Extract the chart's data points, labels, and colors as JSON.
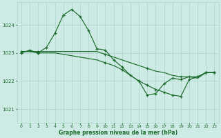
{
  "title": "Graphe pression niveau de la mer (hPa)",
  "background_color": "#ceeae4",
  "line_color": "#1a6b2a",
  "grid_color": "#aad4cc",
  "x_ticks": [
    0,
    1,
    2,
    3,
    4,
    5,
    6,
    7,
    8,
    9,
    10,
    11,
    12,
    13,
    14,
    15,
    16,
    17,
    18,
    19,
    20,
    21,
    22,
    23
  ],
  "ylim": [
    1020.5,
    1024.8
  ],
  "yticks": [
    1021,
    1022,
    1023,
    1024
  ],
  "line1": [
    1023.0,
    1023.1,
    1023.0,
    1023.2,
    1023.7,
    1024.35,
    1024.55,
    1024.3,
    1023.8,
    1023.15,
    1023.1,
    1022.75,
    1022.5,
    1022.2,
    1022.0,
    1021.5,
    1021.55,
    1021.9,
    1022.1,
    1022.05,
    1022.15,
    1022.15,
    1022.3,
    1022.3
  ],
  "line2": [
    1023.05,
    1023.05,
    1023.05,
    1023.05,
    1023.05,
    1023.05,
    1023.05,
    1023.05,
    1023.05,
    1023.05,
    1022.95,
    1022.85,
    1022.75,
    1022.65,
    1022.55,
    1022.45,
    1022.35,
    1022.3,
    1022.2,
    1022.15,
    1022.15,
    1022.1,
    1022.3,
    1022.3
  ],
  "line3": [
    1023.05,
    1023.05,
    1023.0,
    1023.0,
    1023.0,
    1022.95,
    1022.9,
    1022.85,
    1022.8,
    1022.75,
    1022.65,
    1022.55,
    1022.4,
    1022.2,
    1022.0,
    1021.85,
    1021.7,
    1021.6,
    1021.5,
    1021.45,
    1022.05,
    1022.15,
    1022.3,
    1022.3
  ]
}
